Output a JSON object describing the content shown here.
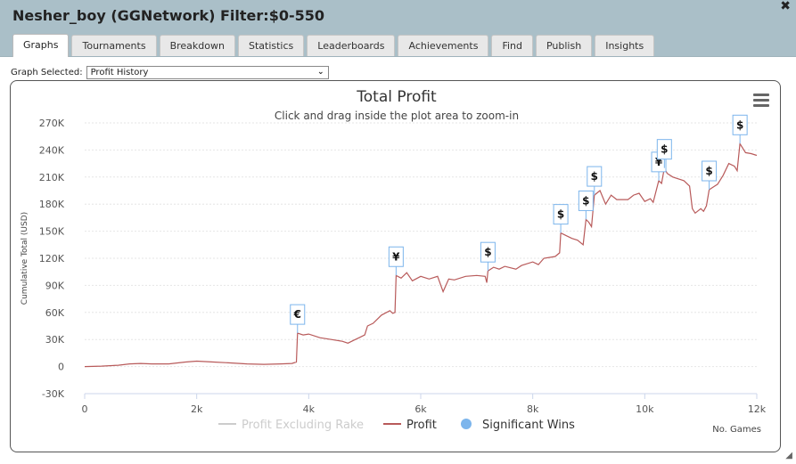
{
  "window": {
    "title": "Nesher_boy (GGNetwork) Filter:$0-550",
    "close_label": "✖"
  },
  "tabs": [
    {
      "label": "Graphs",
      "active": true
    },
    {
      "label": "Tournaments",
      "active": false
    },
    {
      "label": "Breakdown",
      "active": false
    },
    {
      "label": "Statistics",
      "active": false
    },
    {
      "label": "Leaderboards",
      "active": false
    },
    {
      "label": "Achievements",
      "active": false
    },
    {
      "label": "Find",
      "active": false
    },
    {
      "label": "Publish",
      "active": false
    },
    {
      "label": "Insights",
      "active": false
    }
  ],
  "graph_select": {
    "label": "Graph Selected:",
    "value": "Profit History"
  },
  "menu_icon": "hamburger-menu-icon",
  "chart_data": {
    "type": "line",
    "title": "Total Profit",
    "subtitle": "Click and drag inside the plot area to zoom-in",
    "xlabel": "No. Games",
    "ylabel": "Cumulative Total (USD)",
    "xlim": [
      0,
      12000
    ],
    "ylim": [
      -30000,
      270000
    ],
    "x_ticks": [
      0,
      2000,
      4000,
      6000,
      8000,
      10000,
      12000
    ],
    "x_tick_labels": [
      "0",
      "2k",
      "4k",
      "6k",
      "8k",
      "10k",
      "12k"
    ],
    "y_ticks": [
      -30000,
      0,
      30000,
      60000,
      90000,
      120000,
      150000,
      180000,
      210000,
      240000,
      270000
    ],
    "y_tick_labels": [
      "-30K",
      "0",
      "30K",
      "60K",
      "90K",
      "120K",
      "150K",
      "180K",
      "210K",
      "240K",
      "270K"
    ],
    "grid": "horizontal",
    "legend": [
      {
        "name": "Profit Excluding Rake",
        "color": "#cccccc",
        "kind": "line",
        "muted": true
      },
      {
        "name": "Profit",
        "color": "#b85a5a",
        "kind": "line",
        "muted": false
      },
      {
        "name": "Significant Wins",
        "color": "#7cb5ec",
        "kind": "marker",
        "muted": false
      }
    ],
    "series": [
      {
        "name": "Profit",
        "color": "#b85a5a",
        "points": [
          [
            0,
            0
          ],
          [
            300,
            500
          ],
          [
            600,
            1500
          ],
          [
            800,
            3000
          ],
          [
            1000,
            3500
          ],
          [
            1200,
            3000
          ],
          [
            1500,
            3000
          ],
          [
            1800,
            5000
          ],
          [
            2000,
            6000
          ],
          [
            2300,
            5000
          ],
          [
            2600,
            4000
          ],
          [
            2900,
            3000
          ],
          [
            3200,
            2500
          ],
          [
            3500,
            3000
          ],
          [
            3700,
            3500
          ],
          [
            3780,
            5000
          ],
          [
            3800,
            37000
          ],
          [
            3900,
            35000
          ],
          [
            4000,
            36000
          ],
          [
            4200,
            32000
          ],
          [
            4400,
            30000
          ],
          [
            4600,
            28000
          ],
          [
            4700,
            26000
          ],
          [
            4800,
            29000
          ],
          [
            4900,
            32000
          ],
          [
            5000,
            35000
          ],
          [
            5050,
            45000
          ],
          [
            5150,
            48000
          ],
          [
            5300,
            57000
          ],
          [
            5450,
            62000
          ],
          [
            5500,
            59000
          ],
          [
            5540,
            60000
          ],
          [
            5560,
            101000
          ],
          [
            5650,
            98000
          ],
          [
            5750,
            104000
          ],
          [
            5850,
            95000
          ],
          [
            6000,
            100000
          ],
          [
            6150,
            97000
          ],
          [
            6300,
            100000
          ],
          [
            6400,
            83000
          ],
          [
            6500,
            97000
          ],
          [
            6600,
            96000
          ],
          [
            6800,
            100000
          ],
          [
            7000,
            101000
          ],
          [
            7150,
            100000
          ],
          [
            7180,
            93000
          ],
          [
            7200,
            106000
          ],
          [
            7300,
            110000
          ],
          [
            7400,
            108000
          ],
          [
            7500,
            111000
          ],
          [
            7700,
            108000
          ],
          [
            7800,
            112000
          ],
          [
            8000,
            116000
          ],
          [
            8100,
            113000
          ],
          [
            8200,
            120000
          ],
          [
            8400,
            122000
          ],
          [
            8480,
            126000
          ],
          [
            8500,
            148000
          ],
          [
            8600,
            145000
          ],
          [
            8700,
            142000
          ],
          [
            8800,
            140000
          ],
          [
            8900,
            135000
          ],
          [
            8950,
            163000
          ],
          [
            9000,
            160000
          ],
          [
            9050,
            155000
          ],
          [
            9100,
            190000
          ],
          [
            9200,
            195000
          ],
          [
            9300,
            180000
          ],
          [
            9400,
            190000
          ],
          [
            9500,
            185000
          ],
          [
            9700,
            185000
          ],
          [
            9800,
            190000
          ],
          [
            9900,
            192000
          ],
          [
            10000,
            183000
          ],
          [
            10100,
            186000
          ],
          [
            10150,
            182000
          ],
          [
            10250,
            206000
          ],
          [
            10300,
            203000
          ],
          [
            10350,
            220000
          ],
          [
            10400,
            214000
          ],
          [
            10500,
            210000
          ],
          [
            10700,
            206000
          ],
          [
            10800,
            200000
          ],
          [
            10850,
            175000
          ],
          [
            10900,
            170000
          ],
          [
            11000,
            175000
          ],
          [
            11050,
            172000
          ],
          [
            11100,
            178000
          ],
          [
            11150,
            196000
          ],
          [
            11250,
            200000
          ],
          [
            11300,
            202000
          ],
          [
            11400,
            212000
          ],
          [
            11500,
            225000
          ],
          [
            11600,
            222000
          ],
          [
            11650,
            217000
          ],
          [
            11700,
            247000
          ],
          [
            11800,
            237000
          ],
          [
            11900,
            236000
          ],
          [
            12000,
            234000
          ]
        ]
      }
    ],
    "significant_wins": [
      {
        "x": 3800,
        "y": 37000,
        "symbol": "€"
      },
      {
        "x": 5560,
        "y": 101000,
        "symbol": "¥"
      },
      {
        "x": 7200,
        "y": 106000,
        "symbol": "$"
      },
      {
        "x": 8500,
        "y": 148000,
        "symbol": "$"
      },
      {
        "x": 8950,
        "y": 163000,
        "symbol": "$"
      },
      {
        "x": 9100,
        "y": 190000,
        "symbol": "$"
      },
      {
        "x": 10250,
        "y": 206000,
        "symbol": "¥"
      },
      {
        "x": 10350,
        "y": 220000,
        "symbol": "$"
      },
      {
        "x": 11150,
        "y": 196000,
        "symbol": "$"
      },
      {
        "x": 11700,
        "y": 247000,
        "symbol": "$"
      }
    ]
  }
}
